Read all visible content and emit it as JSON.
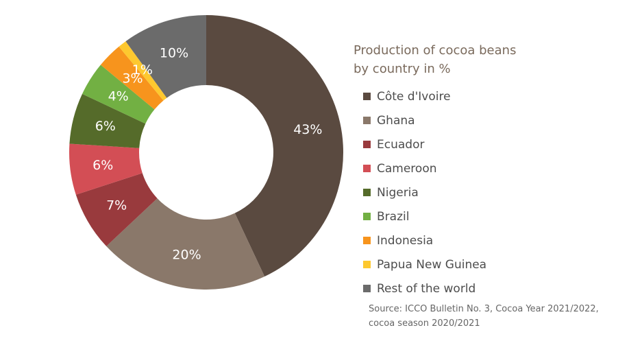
{
  "chart_data": {
    "type": "pie",
    "title": "Production of cocoa beans",
    "subtitle": "by country in %",
    "categories": [
      "Côte d'Ivoire",
      "Ghana",
      "Ecuador",
      "Cameroon",
      "Nigeria",
      "Brazil",
      "Indonesia",
      "Papua New Guinea",
      "Rest of the world"
    ],
    "values": [
      43,
      20,
      7,
      6,
      6,
      4,
      3,
      1,
      10
    ],
    "data_labels": [
      "43%",
      "20%",
      "7%",
      "6%",
      "6%",
      "4%",
      "3%",
      "1%",
      "10%"
    ],
    "colors": [
      "#5a4a40",
      "#8a786a",
      "#993a3d",
      "#d34e55",
      "#556b2a",
      "#72b043",
      "#f7941d",
      "#fdc82f",
      "#6b6b6b"
    ],
    "label_color": "#ffffff",
    "donut": true,
    "start": "top, clockwise",
    "legend": "right",
    "source": "Source: ICCO Bulletin No. 3, Cocoa Year 2021/2022, cocoa season 2020/2021"
  }
}
